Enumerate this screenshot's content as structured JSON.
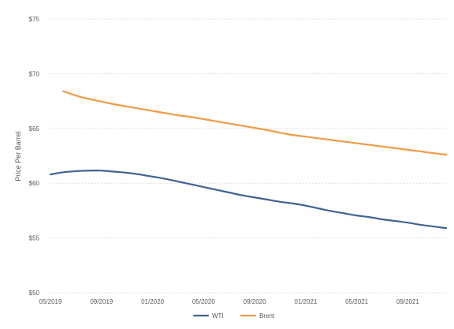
{
  "chart_data": {
    "type": "line",
    "title": "",
    "xlabel": "",
    "ylabel": "Price Per Barrel",
    "x": [
      "05/2019",
      "06/2019",
      "07/2019",
      "08/2019",
      "09/2019",
      "10/2019",
      "11/2019",
      "12/2019",
      "01/2020",
      "02/2020",
      "03/2020",
      "04/2020",
      "05/2020",
      "06/2020",
      "07/2020",
      "08/2020",
      "09/2020",
      "10/2020",
      "11/2020",
      "12/2020",
      "01/2021",
      "02/2021",
      "03/2021",
      "04/2021",
      "05/2021",
      "06/2021",
      "07/2021",
      "08/2021",
      "09/2021",
      "10/2021",
      "11/2021",
      "12/2021"
    ],
    "x_ticks": [
      "05/2019",
      "09/2019",
      "01/2020",
      "05/2020",
      "09/2020",
      "01/2021",
      "05/2021",
      "09/2021"
    ],
    "y_ticks": [
      "$50",
      "$55",
      "$60",
      "$65",
      "$70",
      "$75"
    ],
    "ylim": [
      50,
      75
    ],
    "grid": true,
    "legend_position": "bottom",
    "series": [
      {
        "name": "WTI",
        "color": "#3f6493",
        "values": [
          60.8,
          61.0,
          61.1,
          61.15,
          61.15,
          61.05,
          60.95,
          60.8,
          60.6,
          60.4,
          60.15,
          59.9,
          59.65,
          59.4,
          59.15,
          58.9,
          58.7,
          58.5,
          58.3,
          58.15,
          57.95,
          57.7,
          57.45,
          57.25,
          57.05,
          56.9,
          56.7,
          56.55,
          56.4,
          56.2,
          56.05,
          55.9
        ]
      },
      {
        "name": "Brent",
        "color": "#f39a46",
        "values": [
          null,
          68.4,
          68.0,
          67.7,
          67.45,
          67.2,
          67.0,
          66.8,
          66.6,
          66.4,
          66.2,
          66.05,
          65.85,
          65.65,
          65.45,
          65.25,
          65.05,
          64.85,
          64.6,
          64.4,
          64.25,
          64.1,
          63.95,
          63.8,
          63.65,
          63.5,
          63.35,
          63.2,
          63.05,
          62.9,
          62.75,
          62.6
        ]
      }
    ]
  }
}
